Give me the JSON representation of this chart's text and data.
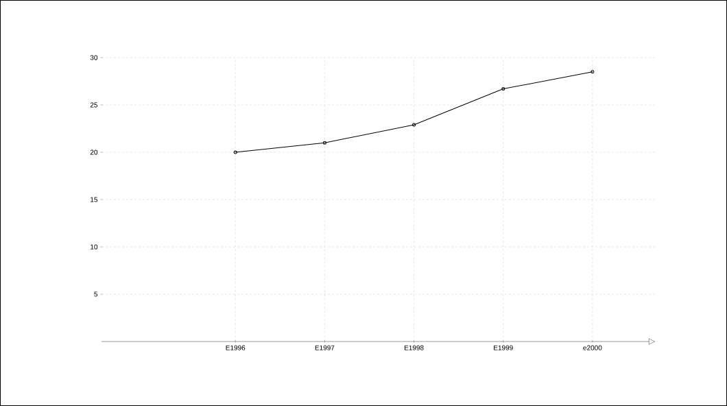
{
  "chart_data": {
    "type": "line",
    "categories": [
      "E1996",
      "E1997",
      "E1998",
      "E1999",
      "e2000"
    ],
    "values": [
      20,
      21,
      22.9,
      26.7,
      28.5
    ],
    "color": "#000000",
    "ylim": [
      0,
      30
    ],
    "yticks": [
      5,
      10,
      15,
      20,
      25,
      30
    ],
    "grid": true,
    "marker": "circle",
    "line_style": "solid"
  }
}
